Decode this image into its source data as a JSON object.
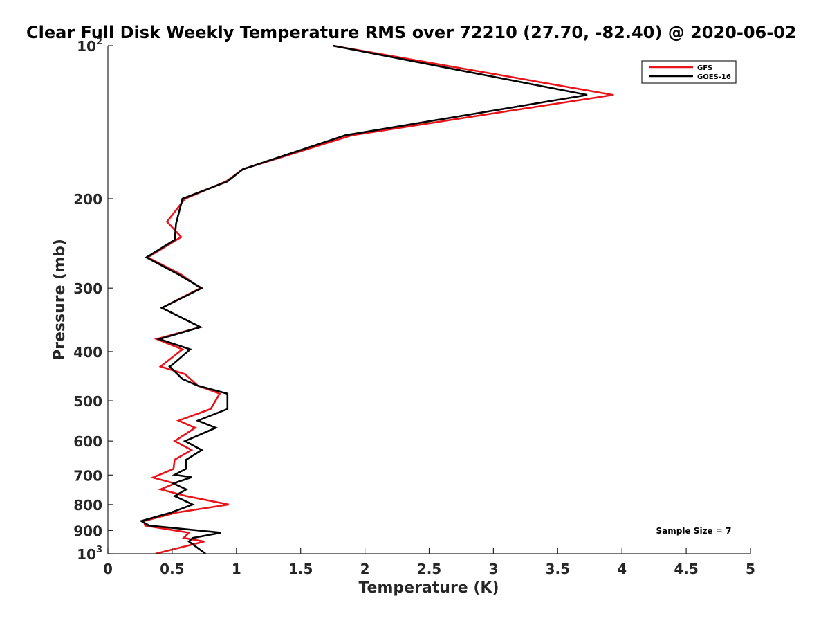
{
  "chart_data": {
    "type": "line",
    "title": "Clear Full Disk Weekly Temperature RMS over 72210 (27.70, -82.40) @ 2020-06-02",
    "xlabel": "Temperature (K)",
    "ylabel": "Pressure (mb)",
    "xlim": [
      0,
      5
    ],
    "ylim": [
      100,
      1000
    ],
    "y_scale": "log",
    "y_reversed": true,
    "grid": false,
    "legend_position": "top-right",
    "x_ticks": [
      {
        "value": 0,
        "label": "0"
      },
      {
        "value": 0.5,
        "label": "0.5"
      },
      {
        "value": 1,
        "label": "1"
      },
      {
        "value": 1.5,
        "label": "1.5"
      },
      {
        "value": 2,
        "label": "2"
      },
      {
        "value": 2.5,
        "label": "2.5"
      },
      {
        "value": 3,
        "label": "3"
      },
      {
        "value": 3.5,
        "label": "3.5"
      },
      {
        "value": 4,
        "label": "4"
      },
      {
        "value": 4.5,
        "label": "4.5"
      },
      {
        "value": 5,
        "label": "5"
      }
    ],
    "y_ticks": [
      {
        "value": 100,
        "label": "10",
        "sup": "2"
      },
      {
        "value": 200,
        "label": "200"
      },
      {
        "value": 300,
        "label": "300"
      },
      {
        "value": 400,
        "label": "400"
      },
      {
        "value": 500,
        "label": "500"
      },
      {
        "value": 600,
        "label": "600"
      },
      {
        "value": 700,
        "label": "700"
      },
      {
        "value": 800,
        "label": "800"
      },
      {
        "value": 900,
        "label": "900"
      },
      {
        "value": 1000,
        "label": "10",
        "sup": "3"
      }
    ],
    "annotation": "Sample Size = 7",
    "series": [
      {
        "name": "GFS",
        "color": "#e8141c",
        "points": [
          [
            1.75,
            100
          ],
          [
            3.93,
            125
          ],
          [
            1.9,
            150
          ],
          [
            1.05,
            175
          ],
          [
            0.92,
            185
          ],
          [
            0.6,
            200
          ],
          [
            0.46,
            222
          ],
          [
            0.57,
            238
          ],
          [
            0.31,
            261
          ],
          [
            0.57,
            282
          ],
          [
            0.72,
            300
          ],
          [
            0.42,
            328
          ],
          [
            0.72,
            358
          ],
          [
            0.38,
            378
          ],
          [
            0.58,
            396
          ],
          [
            0.41,
            428
          ],
          [
            0.6,
            443
          ],
          [
            0.7,
            467
          ],
          [
            0.87,
            484
          ],
          [
            0.8,
            519
          ],
          [
            0.55,
            547
          ],
          [
            0.68,
            565
          ],
          [
            0.52,
            600
          ],
          [
            0.65,
            625
          ],
          [
            0.52,
            653
          ],
          [
            0.51,
            681
          ],
          [
            0.35,
            708
          ],
          [
            0.52,
            727
          ],
          [
            0.41,
            747
          ],
          [
            0.61,
            770
          ],
          [
            0.94,
            800
          ],
          [
            0.53,
            830
          ],
          [
            0.28,
            862
          ],
          [
            0.29,
            880
          ],
          [
            0.63,
            909
          ],
          [
            0.59,
            931
          ],
          [
            0.75,
            946
          ],
          [
            0.37,
            1000
          ]
        ]
      },
      {
        "name": "GOES-16",
        "color": "#000000",
        "points": [
          [
            1.75,
            100
          ],
          [
            3.73,
            125
          ],
          [
            1.85,
            150
          ],
          [
            1.05,
            175
          ],
          [
            0.93,
            185
          ],
          [
            0.58,
            200
          ],
          [
            0.53,
            224
          ],
          [
            0.52,
            241
          ],
          [
            0.3,
            261
          ],
          [
            0.55,
            282
          ],
          [
            0.73,
            300
          ],
          [
            0.42,
            328
          ],
          [
            0.72,
            358
          ],
          [
            0.4,
            378
          ],
          [
            0.64,
            396
          ],
          [
            0.5,
            425
          ],
          [
            0.48,
            428
          ],
          [
            0.58,
            453
          ],
          [
            0.7,
            467
          ],
          [
            0.93,
            484
          ],
          [
            0.93,
            519
          ],
          [
            0.7,
            547
          ],
          [
            0.84,
            565
          ],
          [
            0.6,
            600
          ],
          [
            0.73,
            625
          ],
          [
            0.61,
            653
          ],
          [
            0.61,
            680
          ],
          [
            0.52,
            699
          ],
          [
            0.65,
            707
          ],
          [
            0.51,
            727
          ],
          [
            0.61,
            747
          ],
          [
            0.52,
            770
          ],
          [
            0.66,
            800
          ],
          [
            0.49,
            830
          ],
          [
            0.26,
            862
          ],
          [
            0.32,
            880
          ],
          [
            0.88,
            909
          ],
          [
            0.66,
            931
          ],
          [
            0.63,
            946
          ],
          [
            0.76,
            1000
          ]
        ]
      }
    ]
  }
}
